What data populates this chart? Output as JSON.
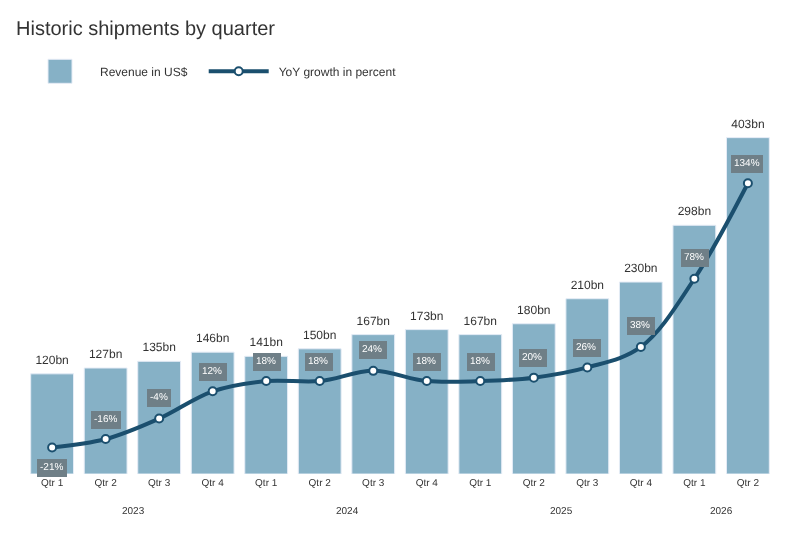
{
  "chart_data": {
    "type": "bar",
    "title": "Historic shipments by quarter",
    "categories": [
      "Qtr 1",
      "Qtr 2",
      "Qtr 3",
      "Qtr 4",
      "Qtr 1",
      "Qtr 2",
      "Qtr 3",
      "Qtr 4",
      "Qtr 1",
      "Qtr 2",
      "Qtr 3",
      "Qtr 4",
      "Qtr 1",
      "Qtr 2"
    ],
    "series": [
      {
        "name": "Revenue in US$",
        "color": "#86b1c6",
        "values": [
          120,
          127,
          135,
          146,
          141,
          150,
          167,
          173,
          167,
          180,
          210,
          230,
          298,
          403
        ],
        "value_labels": [
          "120bn",
          "127bn",
          "135bn",
          "146bn",
          "141bn",
          "150bn",
          "167bn",
          "173bn",
          "167bn",
          "180bn",
          "210bn",
          "230bn",
          "298bn",
          "403bn"
        ]
      },
      {
        "name": "YoY growth in percent",
        "type": "line",
        "axis": "y2",
        "color": "#1b4f6e",
        "marker": "circle",
        "values": [
          -21,
          -16,
          -4,
          12,
          18,
          18,
          24,
          18,
          18,
          20,
          26,
          38,
          78,
          134
        ],
        "value_labels": [
          "-21%",
          "-16%",
          "-4%",
          "12%",
          "18%",
          "18%",
          "24%",
          "18%",
          "18%",
          "20%",
          "26%",
          "38%",
          "78%",
          "134%"
        ]
      }
    ],
    "annotations": [
      "2023",
      "2024",
      "2025",
      "2026"
    ],
    "legend": "top left",
    "tick_labels": "x"
  }
}
